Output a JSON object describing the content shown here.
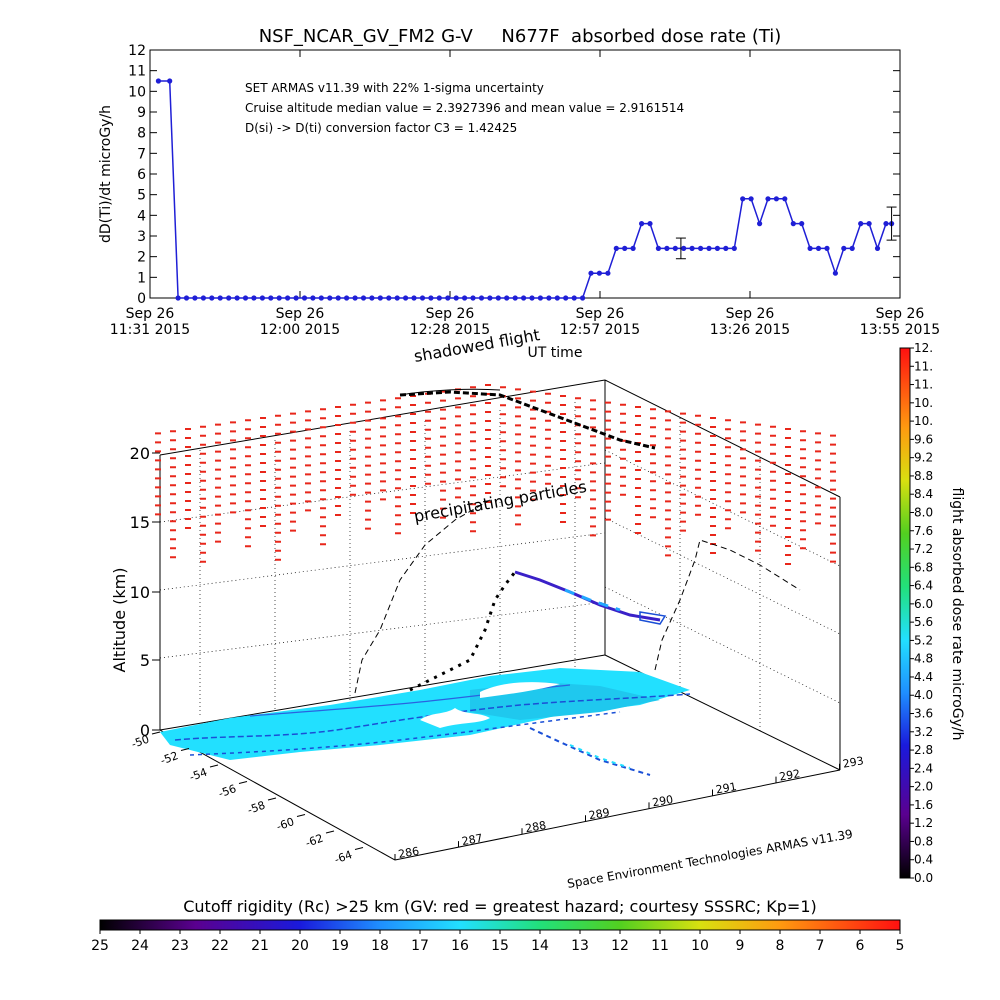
{
  "title": "NSF_NCAR_GV_FM2 G-V     N677F  absorbed dose rate (Ti)",
  "top_chart": {
    "ylabel": "dD(Ti)/dt microGy/h",
    "xlabel": "UT time",
    "legend_lines": [
      "SET ARMAS v11.39 with 22% 1-sigma uncertainty",
      "Cruise altitude median value = 2.3927396 and mean value = 2.9161514",
      "D(si) -> D(ti) conversion factor C3 = 1.42425"
    ],
    "yticks": [
      "0",
      "1",
      "2",
      "3",
      "4",
      "5",
      "6",
      "7",
      "8",
      "9",
      "10",
      "11",
      "12"
    ],
    "xticks": [
      {
        "top": "Sep 26",
        "bottom": "11:31 2015"
      },
      {
        "top": "Sep 26",
        "bottom": "12:00 2015"
      },
      {
        "top": "Sep 26",
        "bottom": "12:28 2015"
      },
      {
        "top": "Sep 26",
        "bottom": "12:57 2015"
      },
      {
        "top": "Sep 26",
        "bottom": "13:26 2015"
      },
      {
        "top": "Sep 26",
        "bottom": "13:55 2015"
      }
    ]
  },
  "chart_data": {
    "type": "line",
    "x_unit": "minutes UT",
    "x": [
      694,
      698,
      701,
      704,
      707,
      710,
      713,
      716,
      719,
      722,
      725,
      728,
      731,
      734,
      737,
      740,
      743,
      746,
      749,
      752,
      755,
      758,
      761,
      764,
      767,
      770,
      773,
      776,
      779,
      782,
      785,
      788,
      791,
      794,
      797,
      800,
      803,
      806,
      809,
      812,
      815,
      818,
      821,
      824,
      827,
      830,
      833,
      836,
      839,
      842,
      845,
      848,
      851,
      854,
      857,
      860,
      863,
      866,
      869,
      872,
      875,
      878,
      881,
      884,
      887,
      890,
      893,
      896,
      899,
      902,
      905,
      908,
      911,
      914,
      917,
      920,
      923,
      926,
      929,
      932,
      935,
      938,
      941,
      944,
      947,
      950,
      953,
      955
    ],
    "values": [
      10.5,
      10.5,
      0,
      0,
      0,
      0,
      0,
      0,
      0,
      0,
      0,
      0,
      0,
      0,
      0,
      0,
      0,
      0,
      0,
      0,
      0,
      0,
      0,
      0,
      0,
      0,
      0,
      0,
      0,
      0,
      0,
      0,
      0,
      0,
      0,
      0,
      0,
      0,
      0,
      0,
      0,
      0,
      0,
      0,
      0,
      0,
      0,
      0,
      0,
      0,
      0,
      1.2,
      1.2,
      1.2,
      2.4,
      2.4,
      2.4,
      3.6,
      3.6,
      2.4,
      2.4,
      2.4,
      2.4,
      2.4,
      2.4,
      2.4,
      2.4,
      2.4,
      2.4,
      4.8,
      4.8,
      3.6,
      4.8,
      4.8,
      4.8,
      3.6,
      3.6,
      2.4,
      2.4,
      2.4,
      1.2,
      2.4,
      2.4,
      3.6,
      3.6,
      2.4,
      3.6,
      3.6
    ],
    "xlim": [
      691,
      958
    ],
    "ylim": [
      0,
      12
    ],
    "error_bars": [
      {
        "x": 880,
        "y": 2.4,
        "err": 0.5
      },
      {
        "x": 955,
        "y": 3.6,
        "err": 0.8
      }
    ],
    "color": "#1f1fd6",
    "grid": false
  },
  "panel3d": {
    "ylabel": "Altitude (km)",
    "z_ticks": [
      "0",
      "5",
      "10",
      "15",
      "20"
    ],
    "lat_ticks": [
      "-50",
      "-52",
      "-54",
      "-56",
      "-58",
      "-60",
      "-62",
      "-64"
    ],
    "lon_ticks": [
      "286",
      "287",
      "288",
      "289",
      "290",
      "291",
      "292",
      "293"
    ],
    "label_shadowed": "shadowed flight",
    "label_precip": "precipitating particles",
    "credit": "Space Environment Technologies ARMAS v11.39",
    "colors": {
      "hazard": "#e8261a",
      "contour": "#22e0ff",
      "contour_dark": "#1a4fd6"
    }
  },
  "right_colorbar": {
    "label": "flight absorbed dose rate microGy/h",
    "ticks": [
      "0.0",
      "0.4",
      "0.8",
      "1.2",
      "1.6",
      "2.0",
      "2.4",
      "2.8",
      "3.2",
      "3.6",
      "4.0",
      "4.4",
      "4.8",
      "5.2",
      "5.6",
      "6.0",
      "6.4",
      "6.8",
      "7.2",
      "7.6",
      "8.0",
      "8.4",
      "8.8",
      "9.2",
      "9.6",
      "10.",
      "10.",
      "11.",
      "11.",
      "12."
    ]
  },
  "bottom_colorbar": {
    "title": "Cutoff rigidity (Rc) >25 km (GV: red = greatest hazard; courtesy SSSRC; Kp=1)",
    "ticks": [
      "25",
      "24",
      "23",
      "22",
      "21",
      "20",
      "19",
      "18",
      "17",
      "16",
      "15",
      "14",
      "13",
      "12",
      "11",
      "10",
      "9",
      "8",
      "7",
      "6",
      "5"
    ]
  }
}
